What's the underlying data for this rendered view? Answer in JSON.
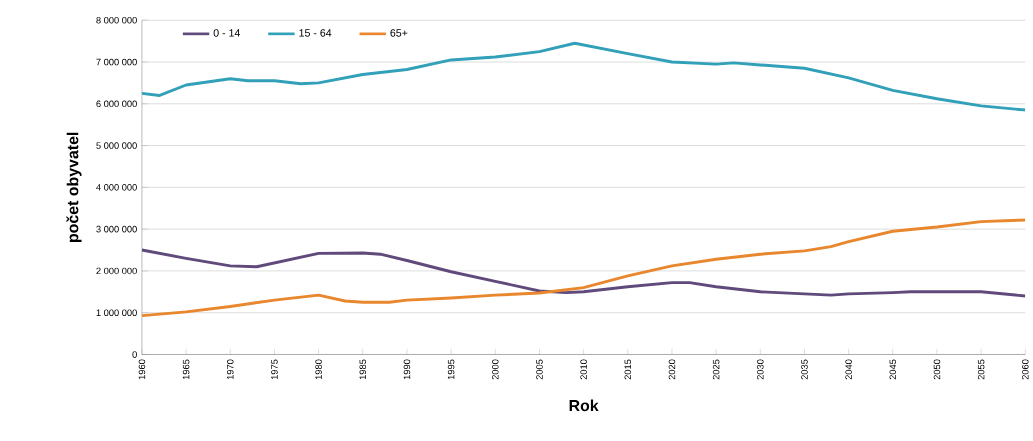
{
  "chart_data": {
    "type": "line",
    "xlabel": "Rok",
    "ylabel": "počet obyvatel",
    "xlim": [
      1960,
      2060
    ],
    "xticks": [
      1960,
      1965,
      1970,
      1975,
      1980,
      1985,
      1990,
      1995,
      2000,
      2005,
      2010,
      2015,
      2020,
      2025,
      2030,
      2035,
      2040,
      2045,
      2050,
      2055,
      2060
    ],
    "ylim": [
      0,
      8000000
    ],
    "yticks": [
      {
        "value": 0,
        "label": "0"
      },
      {
        "value": 1000000,
        "label": "1 000 000"
      },
      {
        "value": 2000000,
        "label": "2 000 000"
      },
      {
        "value": 3000000,
        "label": "3 000 000"
      },
      {
        "value": 4000000,
        "label": "4 000 000"
      },
      {
        "value": 5000000,
        "label": "5 000 000"
      },
      {
        "value": 6000000,
        "label": "6 000 000"
      },
      {
        "value": 7000000,
        "label": "7 000 000"
      },
      {
        "value": 8000000,
        "label": "8 000 000"
      }
    ],
    "grid": "y",
    "legend": "top left",
    "marker": "none",
    "line_style": "solid",
    "series": [
      {
        "name": "0 - 14",
        "color": "#604a7b",
        "x": [
          1960,
          1965,
          1970,
          1973,
          1980,
          1985,
          1987,
          1990,
          1995,
          2000,
          2005,
          2008,
          2010,
          2015,
          2020,
          2022,
          2025,
          2030,
          2035,
          2038,
          2040,
          2045,
          2047,
          2055,
          2060
        ],
        "values": [
          2500000,
          2300000,
          2120000,
          2100000,
          2420000,
          2430000,
          2400000,
          2250000,
          1980000,
          1750000,
          1520000,
          1480000,
          1500000,
          1620000,
          1720000,
          1720000,
          1620000,
          1500000,
          1450000,
          1420000,
          1450000,
          1480000,
          1500000,
          1500000,
          1400000
        ]
      },
      {
        "name": "15 - 64",
        "color": "#31a0b8",
        "x": [
          1960,
          1962,
          1965,
          1970,
          1972,
          1975,
          1978,
          1980,
          1985,
          1990,
          1995,
          2000,
          2005,
          2009,
          2015,
          2020,
          2025,
          2027,
          2030,
          2035,
          2040,
          2045,
          2050,
          2055,
          2060
        ],
        "values": [
          6250000,
          6200000,
          6450000,
          6600000,
          6550000,
          6550000,
          6480000,
          6500000,
          6700000,
          6820000,
          7050000,
          7120000,
          7250000,
          7450000,
          7200000,
          7000000,
          6950000,
          6980000,
          6930000,
          6850000,
          6620000,
          6320000,
          6120000,
          5950000,
          5850000
        ]
      },
      {
        "name": "65+",
        "color": "#e8872d",
        "x": [
          1960,
          1965,
          1970,
          1975,
          1980,
          1983,
          1985,
          1988,
          1990,
          1995,
          2000,
          2005,
          2010,
          2015,
          2020,
          2025,
          2030,
          2035,
          2038,
          2040,
          2045,
          2050,
          2055,
          2060
        ],
        "values": [
          930000,
          1020000,
          1150000,
          1300000,
          1420000,
          1280000,
          1250000,
          1250000,
          1300000,
          1350000,
          1420000,
          1470000,
          1600000,
          1880000,
          2120000,
          2280000,
          2400000,
          2480000,
          2580000,
          2700000,
          2950000,
          3050000,
          3180000,
          3220000
        ]
      }
    ]
  }
}
